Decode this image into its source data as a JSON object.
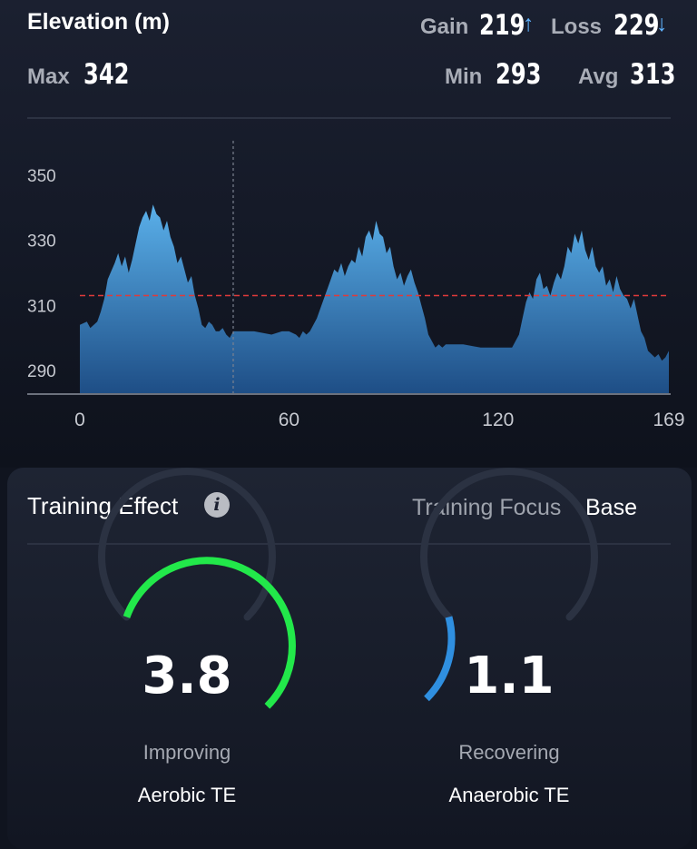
{
  "header": {
    "title": "Elevation (m)",
    "gain_label": "Gain",
    "gain_value": "219",
    "gain_arrow": "↑",
    "loss_label": "Loss",
    "loss_value": "229",
    "loss_arrow": "↓",
    "max_label": "Max",
    "max_value": "342",
    "min_label": "Min",
    "min_value": "293",
    "avg_label": "Avg",
    "avg_value": "313"
  },
  "chart_data": {
    "type": "area",
    "title": "Elevation (m)",
    "xlim": [
      0,
      169
    ],
    "ylim": [
      283,
      355
    ],
    "x_ticks": [
      "0",
      "60",
      "120",
      "169"
    ],
    "x_tick_values": [
      0,
      60,
      120,
      169
    ],
    "y_ticks": [
      "350",
      "330",
      "310",
      "290"
    ],
    "y_tick_values": [
      350,
      330,
      310,
      290
    ],
    "average_line": 313,
    "cursor_x": 44,
    "series": [
      {
        "x": [
          0,
          2,
          3,
          5,
          6,
          7,
          8,
          10,
          11,
          12,
          13,
          14,
          15,
          16,
          17,
          18,
          19,
          20,
          21,
          22,
          23,
          24,
          25,
          26,
          27,
          28,
          29,
          30,
          31,
          32,
          33,
          34,
          35,
          36,
          37,
          38,
          39,
          40,
          41,
          42,
          43,
          44,
          46,
          50,
          55,
          58,
          60,
          62,
          63,
          64,
          65,
          66,
          68,
          70,
          72,
          73,
          74,
          75,
          76,
          77,
          78,
          79,
          80,
          81,
          82,
          83,
          84,
          85,
          86,
          87,
          88,
          89,
          90,
          91,
          92,
          93,
          94,
          95,
          96,
          97,
          98,
          99,
          100,
          101,
          102,
          103,
          104,
          105,
          110,
          115,
          120,
          123,
          124,
          125,
          126,
          127,
          128,
          129,
          130,
          131,
          132,
          133,
          134,
          135,
          136,
          137,
          138,
          139,
          140,
          141,
          142,
          143,
          144,
          145,
          146,
          147,
          148,
          149,
          150,
          151,
          152,
          153,
          154,
          155,
          156,
          157,
          158,
          159,
          160,
          161,
          162,
          163,
          164,
          165,
          166,
          167,
          168,
          169
        ],
        "y": [
          304,
          305,
          303,
          305,
          308,
          312,
          318,
          323,
          326,
          322,
          325,
          320,
          324,
          329,
          334,
          337,
          339,
          336,
          341,
          338,
          337,
          333,
          336,
          331,
          328,
          323,
          325,
          321,
          317,
          319,
          313,
          309,
          304,
          303,
          305,
          304,
          302,
          302,
          303,
          301,
          300,
          302,
          302,
          302,
          301,
          302,
          302,
          301,
          300,
          302,
          301,
          302,
          306,
          312,
          318,
          321,
          320,
          323,
          319,
          322,
          324,
          323,
          328,
          325,
          331,
          333,
          330,
          336,
          332,
          331,
          326,
          328,
          322,
          318,
          320,
          316,
          319,
          321,
          317,
          314,
          310,
          306,
          301,
          299,
          297,
          298,
          297,
          298,
          298,
          297,
          297,
          297,
          297,
          299,
          301,
          306,
          311,
          314,
          312,
          318,
          320,
          315,
          316,
          313,
          317,
          320,
          318,
          322,
          328,
          326,
          332,
          329,
          333,
          327,
          324,
          328,
          322,
          320,
          322,
          316,
          318,
          314,
          319,
          315,
          313,
          312,
          309,
          312,
          307,
          302,
          300,
          296,
          295,
          294,
          295,
          293,
          294,
          296
        ]
      }
    ]
  },
  "training": {
    "title": "Training Effect",
    "info_icon": "info-icon",
    "focus_label": "Training Focus",
    "focus_value": "Base",
    "aerobic": {
      "value": "3.8",
      "numeric": 3.8,
      "max": 5,
      "status": "Improving",
      "name": "Aerobic TE",
      "color": "#22e84a"
    },
    "anaerobic": {
      "value": "1.1",
      "numeric": 1.1,
      "max": 5,
      "status": "Recovering",
      "name": "Anaerobic TE",
      "color": "#2f8fe0"
    }
  },
  "colors": {
    "background": "#10141f",
    "area_top": "#5ab0ea",
    "area_bottom": "#1e4e86",
    "average_line": "#e03a3a",
    "gauge_track": "#2b3242"
  }
}
